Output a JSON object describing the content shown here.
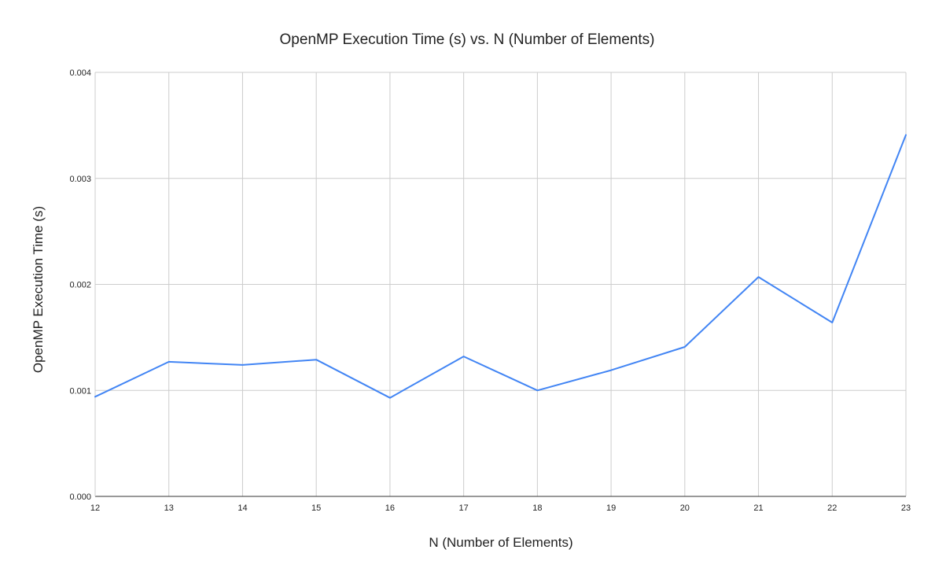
{
  "chart_data": {
    "type": "line",
    "title": "OpenMP Execution Time (s) vs. N (Number of Elements)",
    "xlabel": "N (Number of Elements)",
    "ylabel": "OpenMP Execution Time (s)",
    "x": [
      12,
      13,
      14,
      15,
      16,
      17,
      18,
      19,
      20,
      21,
      22,
      23
    ],
    "x_tick_labels": [
      "12",
      "13",
      "14",
      "15",
      "16",
      "17",
      "18",
      "19",
      "20",
      "21",
      "22",
      "23"
    ],
    "y_ticks": [
      0,
      0.001,
      0.002,
      0.003,
      0.004
    ],
    "y_tick_labels": [
      "0.000",
      "0.001",
      "0.002",
      "0.003",
      "0.004"
    ],
    "xlim": [
      12,
      23
    ],
    "ylim": [
      0,
      0.004
    ],
    "grid": true,
    "legend": "none",
    "series": [
      {
        "values": [
          0.00094,
          0.00127,
          0.00124,
          0.00129,
          0.00093,
          0.00132,
          0.001,
          0.00119,
          0.00141,
          0.00207,
          0.00164,
          0.00341
        ],
        "color": "#4285f4"
      }
    ]
  }
}
